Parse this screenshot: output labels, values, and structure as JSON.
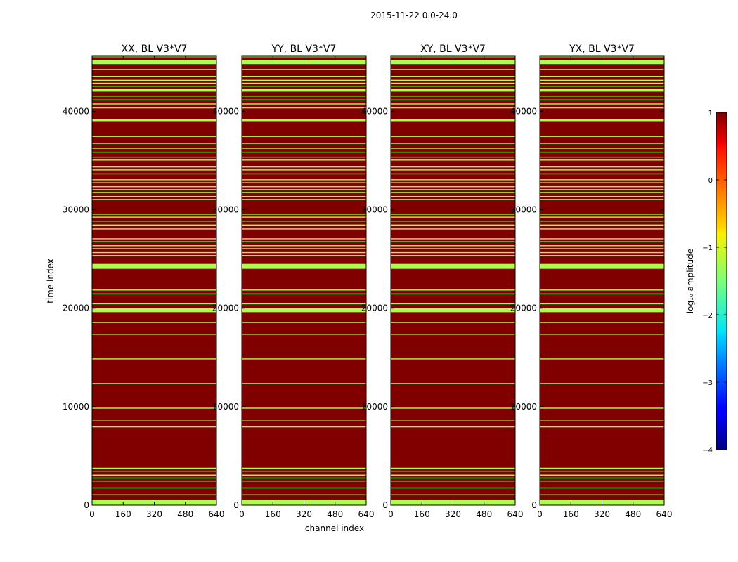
{
  "chart_data": {
    "type": "heatmap",
    "suptitle": "2015-11-22 0.0-24.0",
    "xlabel": "channel index",
    "ylabel": "time index",
    "xlim": [
      0,
      640
    ],
    "ylim": [
      0,
      45600
    ],
    "xticks": [
      0,
      160,
      320,
      480,
      640
    ],
    "yticks": [
      0,
      10000,
      20000,
      30000,
      40000
    ],
    "panels": [
      {
        "title": "XX, BL V3*V7"
      },
      {
        "title": "YY, BL V3*V7"
      },
      {
        "title": "XY, BL V3*V7"
      },
      {
        "title": "YX, BL V3*V7"
      }
    ],
    "background_value": 1.0,
    "background_color": "#800000",
    "flag_value": -1.3,
    "flag_color": "#aaff4d",
    "flagged_time_bands": [
      [
        0,
        500
      ],
      [
        1000,
        1100
      ],
      [
        1700,
        1800
      ],
      [
        2400,
        2500
      ],
      [
        2700,
        2800
      ],
      [
        3000,
        3100
      ],
      [
        3400,
        3500
      ],
      [
        3700,
        3800
      ],
      [
        7900,
        8000
      ],
      [
        8500,
        8600
      ],
      [
        9800,
        9900
      ],
      [
        12300,
        12400
      ],
      [
        14800,
        14900
      ],
      [
        17300,
        17400
      ],
      [
        18500,
        18600
      ],
      [
        19600,
        20000
      ],
      [
        20400,
        20500
      ],
      [
        21400,
        21500
      ],
      [
        21800,
        21900
      ],
      [
        24000,
        24500
      ],
      [
        25300,
        25400
      ],
      [
        25600,
        25700
      ],
      [
        26000,
        26100
      ],
      [
        26300,
        26400
      ],
      [
        26700,
        26800
      ],
      [
        27000,
        27100
      ],
      [
        28000,
        28100
      ],
      [
        28400,
        28500
      ],
      [
        28800,
        28900
      ],
      [
        29200,
        29300
      ],
      [
        29500,
        29600
      ],
      [
        31000,
        31100
      ],
      [
        31300,
        31400
      ],
      [
        31700,
        31800
      ],
      [
        32000,
        32100
      ],
      [
        32300,
        32400
      ],
      [
        32700,
        32800
      ],
      [
        33000,
        33100
      ],
      [
        33600,
        33700
      ],
      [
        34000,
        34100
      ],
      [
        34300,
        34400
      ],
      [
        35000,
        35100
      ],
      [
        35300,
        35400
      ],
      [
        35800,
        35900
      ],
      [
        36200,
        36300
      ],
      [
        36700,
        36800
      ],
      [
        37400,
        37500
      ],
      [
        39000,
        39200
      ],
      [
        40300,
        40400
      ],
      [
        40700,
        40800
      ],
      [
        41100,
        41200
      ],
      [
        41500,
        41600
      ],
      [
        42000,
        42300
      ],
      [
        42500,
        42600
      ],
      [
        42800,
        42900
      ],
      [
        43100,
        43200
      ],
      [
        43500,
        43600
      ],
      [
        44200,
        44300
      ],
      [
        44800,
        45200
      ],
      [
        45500,
        45600
      ]
    ],
    "colorbar": {
      "label": "log₁₀ amplitude",
      "range": [
        -4,
        1
      ],
      "ticks": [
        "1",
        "0",
        "−1",
        "−2",
        "−3",
        "−4"
      ]
    }
  }
}
